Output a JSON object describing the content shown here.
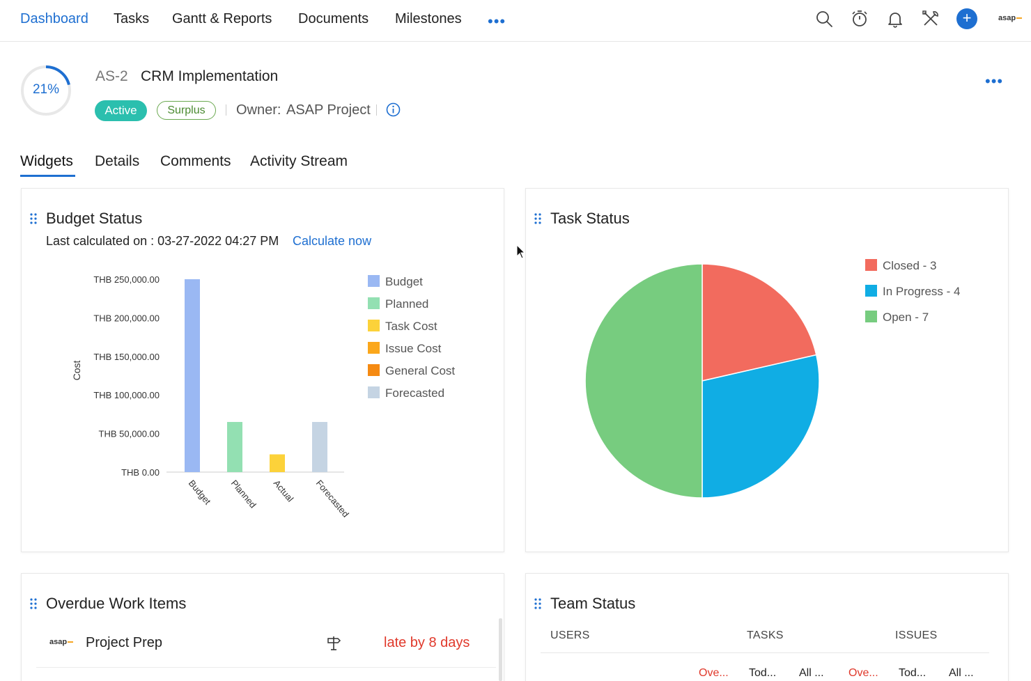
{
  "nav": {
    "items": [
      "Dashboard",
      "Tasks",
      "Gantt & Reports",
      "Documents",
      "Milestones"
    ],
    "more": "•••",
    "icons": [
      "search-icon",
      "timer-icon",
      "bell-icon",
      "tools-icon",
      "add-icon"
    ],
    "logo": "asap"
  },
  "project": {
    "progress": "21%",
    "progress_value": 0.21,
    "id": "AS-2",
    "name": "CRM Implementation",
    "status": "Active",
    "budget_status": "Surplus",
    "owner_label": "Owner:",
    "owner": "ASAP Project",
    "more": "•••"
  },
  "tabs": [
    "Widgets",
    "Details",
    "Comments",
    "Activity Stream"
  ],
  "budget_widget": {
    "title": "Budget Status",
    "last_calculated": "Last calculated on : 03-27-2022 04:27 PM",
    "calculate_now": "Calculate now"
  },
  "task_widget": {
    "title": "Task Status"
  },
  "overdue_widget": {
    "title": "Overdue Work Items",
    "items": [
      {
        "logo": "asap",
        "name": "Project Prep",
        "icon": "milestone-icon",
        "status": "late by 8 days"
      }
    ]
  },
  "team_widget": {
    "title": "Team Status",
    "headers": [
      "USERS",
      "TASKS",
      "ISSUES"
    ],
    "subheaders": [
      "Ove...",
      "Tod...",
      "All ...",
      "Ove...",
      "Tod...",
      "All ..."
    ]
  },
  "colors": {
    "accent": "#1e6fd1",
    "active_badge": "#2bbfae",
    "surplus": "#6aa84f",
    "late": "#e0392b"
  },
  "chart_data": [
    {
      "type": "bar",
      "ylabel": "Cost",
      "categories": [
        "Budget",
        "Planned",
        "Actual",
        "Forecasted"
      ],
      "y_ticks": [
        "THB 0.00",
        "THB 50,000.00",
        "THB 100,000.00",
        "THB 150,000.00",
        "THB 200,000.00",
        "THB 250,000.00"
      ],
      "ylim": [
        0,
        250000
      ],
      "series": [
        {
          "name": "Budget",
          "color": "#9ab8f3",
          "values": [
            250000,
            0,
            0,
            0
          ]
        },
        {
          "name": "Planned",
          "color": "#93e0b2",
          "values": [
            0,
            65000,
            0,
            0
          ]
        },
        {
          "name": "Task Cost",
          "color": "#fcd23a",
          "values": [
            0,
            0,
            23000,
            0
          ]
        },
        {
          "name": "Issue Cost",
          "color": "#fba71b",
          "values": [
            0,
            0,
            0,
            0
          ]
        },
        {
          "name": "General Cost",
          "color": "#f58a12",
          "values": [
            0,
            0,
            0,
            0
          ]
        },
        {
          "name": "Forecasted",
          "color": "#c5d4e3",
          "values": [
            0,
            0,
            0,
            65000
          ]
        }
      ],
      "legend": "right"
    },
    {
      "type": "pie",
      "slices": [
        {
          "label": "Closed - 3",
          "value": 3,
          "color": "#f26b5e"
        },
        {
          "label": "In Progress - 4",
          "value": 4,
          "color": "#10ade4"
        },
        {
          "label": "Open - 7",
          "value": 7,
          "color": "#77cc7f"
        }
      ],
      "legend": "right"
    }
  ]
}
